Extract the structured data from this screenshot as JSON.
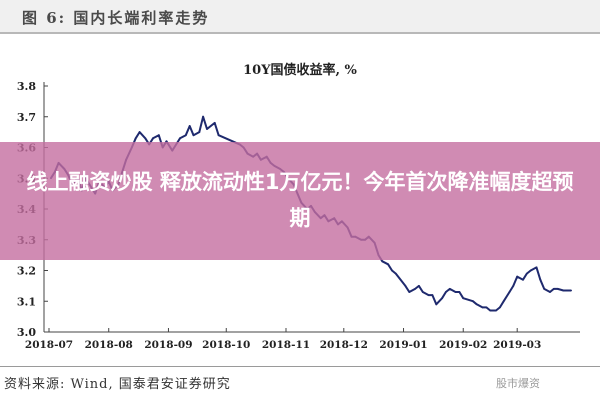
{
  "figure": {
    "label": "图 6:  国内长端利率走势"
  },
  "chart_data": {
    "type": "line",
    "title": "10Y国债收益率,  %",
    "xlabel": "",
    "ylabel": "",
    "ylim": [
      3.0,
      3.8
    ],
    "yticks": [
      "3.0",
      "3.1",
      "3.2",
      "3.3",
      "3.4",
      "3.5",
      "3.6",
      "3.7",
      "3.8"
    ],
    "xticks": [
      "2018-07",
      "2018-08",
      "2018-09",
      "2018-10",
      "2018-11",
      "2018-12",
      "2019-01",
      "2019-02",
      "2019-03"
    ],
    "grid": false,
    "legend": "none",
    "color": "#1f2a6e",
    "series": [
      {
        "values": [
          [
            "2018-07-02",
            3.5
          ],
          [
            "2018-07-04",
            3.52
          ],
          [
            "2018-07-06",
            3.55
          ],
          [
            "2018-07-09",
            3.53
          ],
          [
            "2018-07-11",
            3.51
          ],
          [
            "2018-07-13",
            3.48
          ],
          [
            "2018-07-16",
            3.5
          ],
          [
            "2018-07-18",
            3.46
          ],
          [
            "2018-07-20",
            3.5
          ],
          [
            "2018-07-23",
            3.47
          ],
          [
            "2018-07-25",
            3.45
          ],
          [
            "2018-07-27",
            3.49
          ],
          [
            "2018-07-30",
            3.47
          ],
          [
            "2018-08-01",
            3.49
          ],
          [
            "2018-08-03",
            3.46
          ],
          [
            "2018-08-06",
            3.48
          ],
          [
            "2018-08-08",
            3.52
          ],
          [
            "2018-08-10",
            3.56
          ],
          [
            "2018-08-13",
            3.6
          ],
          [
            "2018-08-15",
            3.63
          ],
          [
            "2018-08-17",
            3.65
          ],
          [
            "2018-08-20",
            3.63
          ],
          [
            "2018-08-22",
            3.61
          ],
          [
            "2018-08-24",
            3.63
          ],
          [
            "2018-08-27",
            3.64
          ],
          [
            "2018-08-29",
            3.6
          ],
          [
            "2018-08-31",
            3.62
          ],
          [
            "2018-09-03",
            3.59
          ],
          [
            "2018-09-05",
            3.61
          ],
          [
            "2018-09-07",
            3.63
          ],
          [
            "2018-09-10",
            3.64
          ],
          [
            "2018-09-12",
            3.67
          ],
          [
            "2018-09-14",
            3.64
          ],
          [
            "2018-09-17",
            3.65
          ],
          [
            "2018-09-19",
            3.7
          ],
          [
            "2018-09-21",
            3.66
          ],
          [
            "2018-09-25",
            3.68
          ],
          [
            "2018-09-27",
            3.64
          ],
          [
            "2018-10-08",
            3.61
          ],
          [
            "2018-10-10",
            3.6
          ],
          [
            "2018-10-12",
            3.58
          ],
          [
            "2018-10-15",
            3.57
          ],
          [
            "2018-10-17",
            3.58
          ],
          [
            "2018-10-19",
            3.56
          ],
          [
            "2018-10-22",
            3.57
          ],
          [
            "2018-10-24",
            3.55
          ],
          [
            "2018-10-26",
            3.54
          ],
          [
            "2018-10-29",
            3.53
          ],
          [
            "2018-10-31",
            3.52
          ],
          [
            "2018-11-02",
            3.5
          ],
          [
            "2018-11-05",
            3.48
          ],
          [
            "2018-11-07",
            3.45
          ],
          [
            "2018-11-09",
            3.42
          ],
          [
            "2018-11-12",
            3.4
          ],
          [
            "2018-11-14",
            3.41
          ],
          [
            "2018-11-16",
            3.39
          ],
          [
            "2018-11-19",
            3.37
          ],
          [
            "2018-11-21",
            3.38
          ],
          [
            "2018-11-23",
            3.36
          ],
          [
            "2018-11-26",
            3.37
          ],
          [
            "2018-11-28",
            3.35
          ],
          [
            "2018-11-30",
            3.36
          ],
          [
            "2018-12-03",
            3.34
          ],
          [
            "2018-12-05",
            3.31
          ],
          [
            "2018-12-07",
            3.31
          ],
          [
            "2018-12-10",
            3.3
          ],
          [
            "2018-12-12",
            3.3
          ],
          [
            "2018-12-14",
            3.31
          ],
          [
            "2018-12-17",
            3.29
          ],
          [
            "2018-12-19",
            3.25
          ],
          [
            "2018-12-21",
            3.23
          ],
          [
            "2018-12-24",
            3.22
          ],
          [
            "2018-12-26",
            3.2
          ],
          [
            "2018-12-28",
            3.19
          ],
          [
            "2019-01-02",
            3.15
          ],
          [
            "2019-01-04",
            3.13
          ],
          [
            "2019-01-07",
            3.14
          ],
          [
            "2019-01-09",
            3.15
          ],
          [
            "2019-01-11",
            3.13
          ],
          [
            "2019-01-14",
            3.12
          ],
          [
            "2019-01-16",
            3.12
          ],
          [
            "2019-01-18",
            3.09
          ],
          [
            "2019-01-21",
            3.11
          ],
          [
            "2019-01-23",
            3.13
          ],
          [
            "2019-01-25",
            3.14
          ],
          [
            "2019-01-28",
            3.13
          ],
          [
            "2019-01-30",
            3.13
          ],
          [
            "2019-02-01",
            3.11
          ],
          [
            "2019-02-06",
            3.1
          ],
          [
            "2019-02-08",
            3.09
          ],
          [
            "2019-02-11",
            3.08
          ],
          [
            "2019-02-13",
            3.08
          ],
          [
            "2019-02-15",
            3.07
          ],
          [
            "2019-02-18",
            3.07
          ],
          [
            "2019-02-20",
            3.08
          ],
          [
            "2019-02-22",
            3.1
          ],
          [
            "2019-02-25",
            3.13
          ],
          [
            "2019-02-27",
            3.15
          ],
          [
            "2019-03-01",
            3.18
          ],
          [
            "2019-03-04",
            3.17
          ],
          [
            "2019-03-06",
            3.19
          ],
          [
            "2019-03-08",
            3.2
          ],
          [
            "2019-03-11",
            3.21
          ],
          [
            "2019-03-13",
            3.17
          ],
          [
            "2019-03-15",
            3.14
          ],
          [
            "2019-03-18",
            3.13
          ],
          [
            "2019-03-20",
            3.14
          ],
          [
            "2019-03-22",
            3.14
          ],
          [
            "2019-03-25",
            3.135
          ],
          [
            "2019-03-27",
            3.135
          ],
          [
            "2019-03-29",
            3.135
          ]
        ]
      }
    ]
  },
  "overlay": {
    "banner_text": "线上融资炒股 释放流动性1万亿元！今年首次降准幅度超预期",
    "banner_color": "#c46ea0"
  },
  "source": {
    "text": "资料来源:  Wind,  国泰君安证券研究"
  },
  "watermark": {
    "text": "股市爆资"
  }
}
